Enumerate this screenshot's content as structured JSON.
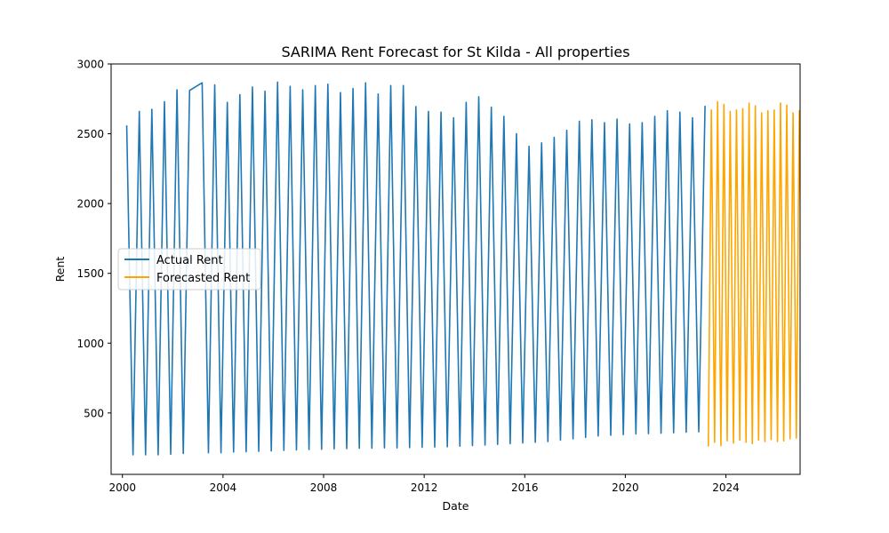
{
  "chart_data": {
    "type": "line",
    "title": "SARIMA Rent Forecast for St Kilda - All properties",
    "xlabel": "Date",
    "ylabel": "Rent",
    "xlim": [
      1999.55,
      2026.95
    ],
    "ylim": [
      60,
      3000
    ],
    "x_ticks": [
      2000,
      2004,
      2008,
      2012,
      2016,
      2020,
      2024
    ],
    "x_tick_labels": [
      "2000",
      "2004",
      "2008",
      "2012",
      "2016",
      "2020",
      "2024"
    ],
    "y_ticks": [
      500,
      1000,
      1500,
      2000,
      2500,
      3000
    ],
    "y_tick_labels": [
      "500",
      "1000",
      "1500",
      "2000",
      "2500",
      "3000"
    ],
    "grid": false,
    "legend_position": "center-left",
    "series": [
      {
        "name": "Actual Rent",
        "color": "#1f77b4",
        "points": [
          [
            2000.17,
            2560
          ],
          [
            2000.42,
            200
          ],
          [
            2000.67,
            2660
          ],
          [
            2000.92,
            200
          ],
          [
            2001.17,
            2675
          ],
          [
            2001.42,
            200
          ],
          [
            2001.67,
            2730
          ],
          [
            2001.92,
            205
          ],
          [
            2002.17,
            2815
          ],
          [
            2002.42,
            210
          ],
          [
            2002.67,
            2810
          ],
          [
            2003.17,
            2865
          ],
          [
            2003.42,
            215
          ],
          [
            2003.67,
            2850
          ],
          [
            2003.92,
            215
          ],
          [
            2004.17,
            2725
          ],
          [
            2004.42,
            220
          ],
          [
            2004.67,
            2780
          ],
          [
            2004.92,
            222
          ],
          [
            2005.17,
            2835
          ],
          [
            2005.42,
            225
          ],
          [
            2005.67,
            2805
          ],
          [
            2005.92,
            228
          ],
          [
            2006.17,
            2870
          ],
          [
            2006.42,
            232
          ],
          [
            2006.67,
            2840
          ],
          [
            2006.92,
            235
          ],
          [
            2007.17,
            2815
          ],
          [
            2007.42,
            238
          ],
          [
            2007.67,
            2845
          ],
          [
            2007.92,
            240
          ],
          [
            2008.17,
            2855
          ],
          [
            2008.42,
            243
          ],
          [
            2008.67,
            2795
          ],
          [
            2008.92,
            245
          ],
          [
            2009.17,
            2825
          ],
          [
            2009.42,
            247
          ],
          [
            2009.67,
            2865
          ],
          [
            2009.92,
            248
          ],
          [
            2010.17,
            2785
          ],
          [
            2010.42,
            250
          ],
          [
            2010.67,
            2845
          ],
          [
            2010.92,
            250
          ],
          [
            2011.17,
            2845
          ],
          [
            2011.42,
            252
          ],
          [
            2011.67,
            2695
          ],
          [
            2011.92,
            254
          ],
          [
            2012.17,
            2660
          ],
          [
            2012.42,
            256
          ],
          [
            2012.67,
            2655
          ],
          [
            2012.92,
            258
          ],
          [
            2013.17,
            2615
          ],
          [
            2013.42,
            262
          ],
          [
            2013.67,
            2725
          ],
          [
            2013.92,
            266
          ],
          [
            2014.17,
            2765
          ],
          [
            2014.42,
            270
          ],
          [
            2014.67,
            2690
          ],
          [
            2014.92,
            275
          ],
          [
            2015.17,
            2625
          ],
          [
            2015.42,
            280
          ],
          [
            2015.67,
            2500
          ],
          [
            2015.92,
            285
          ],
          [
            2016.17,
            2410
          ],
          [
            2016.42,
            290
          ],
          [
            2016.67,
            2435
          ],
          [
            2016.92,
            295
          ],
          [
            2017.17,
            2475
          ],
          [
            2017.42,
            305
          ],
          [
            2017.67,
            2525
          ],
          [
            2017.92,
            315
          ],
          [
            2018.17,
            2590
          ],
          [
            2018.42,
            325
          ],
          [
            2018.67,
            2600
          ],
          [
            2018.92,
            335
          ],
          [
            2019.17,
            2580
          ],
          [
            2019.42,
            340
          ],
          [
            2019.67,
            2605
          ],
          [
            2019.92,
            345
          ],
          [
            2020.17,
            2570
          ],
          [
            2020.42,
            350
          ],
          [
            2020.67,
            2580
          ],
          [
            2020.92,
            352
          ],
          [
            2021.17,
            2625
          ],
          [
            2021.42,
            355
          ],
          [
            2021.67,
            2665
          ],
          [
            2021.92,
            358
          ],
          [
            2022.17,
            2655
          ],
          [
            2022.42,
            362
          ],
          [
            2022.67,
            2615
          ],
          [
            2022.92,
            365
          ],
          [
            2023.17,
            2700
          ]
        ]
      },
      {
        "name": "Forecasted Rent",
        "color": "#ffa500",
        "points": [
          [
            2023.3,
            260
          ],
          [
            2023.42,
            2670
          ],
          [
            2023.55,
            290
          ],
          [
            2023.67,
            2730
          ],
          [
            2023.8,
            265
          ],
          [
            2023.92,
            2710
          ],
          [
            2024.05,
            300
          ],
          [
            2024.17,
            2660
          ],
          [
            2024.3,
            285
          ],
          [
            2024.42,
            2670
          ],
          [
            2024.55,
            305
          ],
          [
            2024.67,
            2680
          ],
          [
            2024.8,
            290
          ],
          [
            2024.92,
            2720
          ],
          [
            2025.05,
            280
          ],
          [
            2025.17,
            2700
          ],
          [
            2025.3,
            305
          ],
          [
            2025.42,
            2650
          ],
          [
            2025.55,
            295
          ],
          [
            2025.67,
            2665
          ],
          [
            2025.8,
            310
          ],
          [
            2025.92,
            2670
          ],
          [
            2026.05,
            295
          ],
          [
            2026.17,
            2720
          ],
          [
            2026.3,
            300
          ],
          [
            2026.42,
            2705
          ],
          [
            2026.55,
            315
          ],
          [
            2026.67,
            2650
          ],
          [
            2026.8,
            320
          ],
          [
            2026.92,
            2665
          ],
          [
            2027.05,
            330
          ],
          [
            2027.17,
            2680
          ]
        ]
      }
    ]
  }
}
